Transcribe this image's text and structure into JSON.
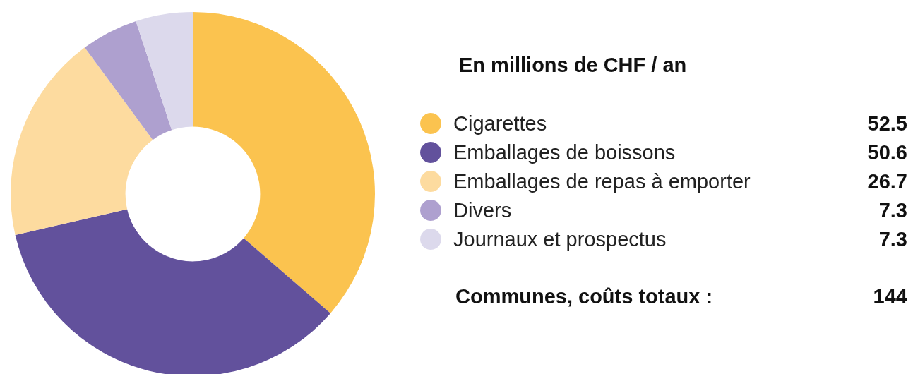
{
  "chart_data": {
    "type": "donut",
    "title": "En millions de CHF / an",
    "categories": [
      "Cigarettes",
      "Emballages de boissons",
      "Emballages de repas à emporter",
      "Divers",
      "Journaux et prospectus"
    ],
    "values": [
      52.5,
      50.6,
      26.7,
      7.3,
      7.3
    ],
    "colors": [
      "#fbc34f",
      "#62519c",
      "#fddb9f",
      "#aea0cf",
      "#dcd9ec"
    ],
    "data_labels": true,
    "legend": "right",
    "annotations": [
      "Communes, coûts totaux :",
      "144"
    ]
  }
}
